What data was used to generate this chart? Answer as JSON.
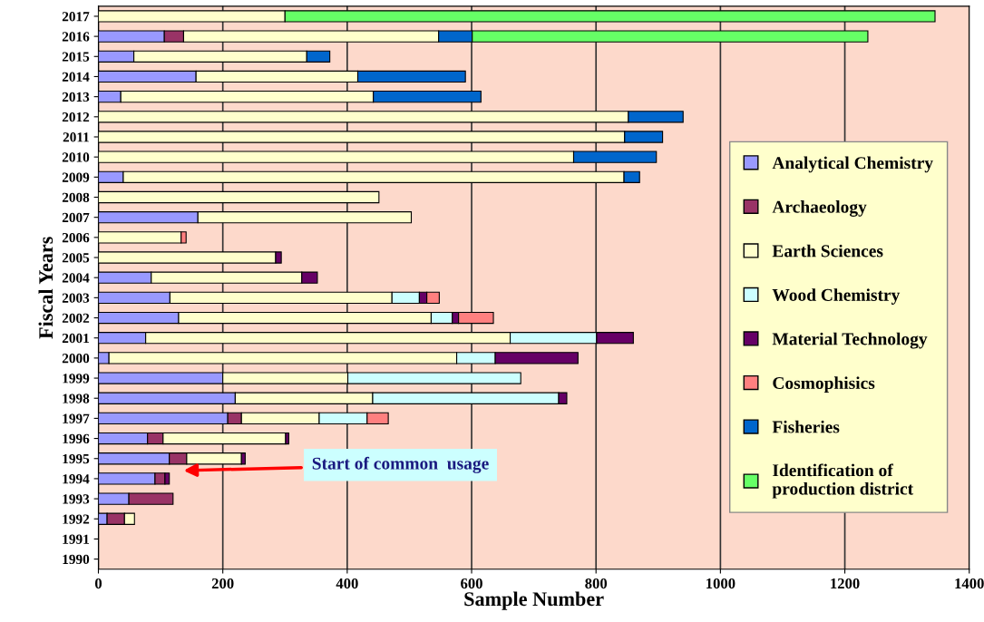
{
  "chart_data": {
    "type": "bar",
    "orientation": "horizontal",
    "stacked": true,
    "xlabel": "Sample Number",
    "ylabel": "Fiscal Years",
    "categories": [
      "2017",
      "2016",
      "2015",
      "2014",
      "2013",
      "2012",
      "2011",
      "2010",
      "2009",
      "2008",
      "2007",
      "2006",
      "2005",
      "2004",
      "2003",
      "2002",
      "2001",
      "2000",
      "1999",
      "1998",
      "1997",
      "1996",
      "1995",
      "1994",
      "1993",
      "1992",
      "1991",
      "1990"
    ],
    "series": [
      {
        "name": "Analytical Chemistry",
        "color": "#9999ff",
        "values": [
          null,
          106,
          57,
          157,
          36,
          null,
          null,
          null,
          40,
          null,
          160,
          null,
          null,
          85,
          115,
          129,
          76,
          17,
          200,
          220,
          208,
          79,
          114,
          91,
          49,
          14,
          null,
          null
        ]
      },
      {
        "name": "Archaeology",
        "color": "#993366",
        "values": [
          null,
          31,
          null,
          null,
          null,
          null,
          null,
          null,
          null,
          null,
          null,
          null,
          null,
          null,
          null,
          null,
          null,
          null,
          null,
          null,
          22,
          25,
          28,
          16,
          71,
          28,
          null,
          null
        ]
      },
      {
        "name": "Earth Sciences",
        "color": "#ffffcc",
        "values": [
          300,
          410,
          278,
          260,
          406,
          852,
          846,
          764,
          805,
          451,
          343,
          133,
          285,
          242,
          357,
          406,
          586,
          559,
          201,
          221,
          125,
          197,
          88,
          null,
          null,
          16,
          null,
          null
        ]
      },
      {
        "name": "Wood Chemistry",
        "color": "#ccffff",
        "values": [
          null,
          null,
          null,
          null,
          null,
          null,
          null,
          null,
          null,
          null,
          null,
          null,
          null,
          null,
          44,
          34,
          139,
          62,
          278,
          299,
          77,
          null,
          null,
          null,
          null,
          null,
          null,
          null
        ]
      },
      {
        "name": "Material Technology",
        "color": "#660066",
        "values": [
          null,
          null,
          null,
          null,
          null,
          null,
          null,
          null,
          null,
          null,
          null,
          null,
          9,
          25,
          12,
          10,
          59,
          133,
          null,
          13,
          null,
          5,
          6,
          7,
          null,
          null,
          null,
          null
        ]
      },
      {
        "name": "Cosmophisics",
        "color": "#ff8080",
        "values": [
          null,
          null,
          null,
          null,
          null,
          null,
          null,
          null,
          null,
          null,
          null,
          8,
          null,
          null,
          20,
          56,
          null,
          null,
          null,
          null,
          34,
          null,
          null,
          null,
          null,
          null,
          null,
          null
        ]
      },
      {
        "name": "Fisheries",
        "color": "#0066cc",
        "values": [
          null,
          54,
          37,
          173,
          173,
          88,
          61,
          133,
          25,
          null,
          null,
          null,
          null,
          null,
          null,
          null,
          null,
          null,
          null,
          null,
          null,
          null,
          null,
          null,
          null,
          null,
          null,
          null
        ]
      },
      {
        "name": "Identification of\nproduction district",
        "color": "#66ff66",
        "values": [
          1045,
          636,
          null,
          null,
          null,
          null,
          null,
          null,
          null,
          null,
          null,
          null,
          null,
          null,
          null,
          null,
          null,
          null,
          null,
          null,
          null,
          null,
          null,
          null,
          null,
          null,
          null,
          null
        ]
      }
    ],
    "xlim": [
      0,
      1400
    ],
    "xticks": [
      0,
      200,
      400,
      600,
      800,
      1000,
      1200,
      1400
    ],
    "grid": "x",
    "legend": "right",
    "annotations": [
      "Start of common  usage"
    ]
  }
}
